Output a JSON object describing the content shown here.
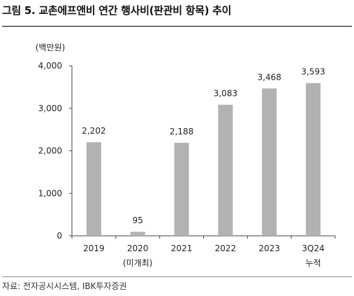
{
  "header": {
    "title": "그림 5. 교촌에프앤비 연간 행사비(판관비 항목) 추이"
  },
  "footer": {
    "source": "자료: 전자공시시스템, IBK투자증권"
  },
  "chart_data": {
    "type": "bar",
    "unit": "(백만원)",
    "categories": [
      "2019",
      "2020",
      "2021",
      "2022",
      "2023",
      "3Q24"
    ],
    "category_sublabels": [
      "",
      "(미개최)",
      "",
      "",
      "",
      "누적"
    ],
    "values": [
      2202,
      95,
      2188,
      3083,
      3468,
      3593
    ],
    "value_labels": [
      "2,202",
      "95",
      "2,188",
      "3,083",
      "3,468",
      "3,593"
    ],
    "ylim": [
      0,
      4000
    ],
    "yticks": [
      0,
      1000,
      2000,
      3000,
      4000
    ],
    "ytick_labels": [
      "0",
      "1,000",
      "2,000",
      "3,000",
      "4,000"
    ],
    "grid": false,
    "bar_color": "#b2b2b2",
    "axis_color": "#444444"
  }
}
